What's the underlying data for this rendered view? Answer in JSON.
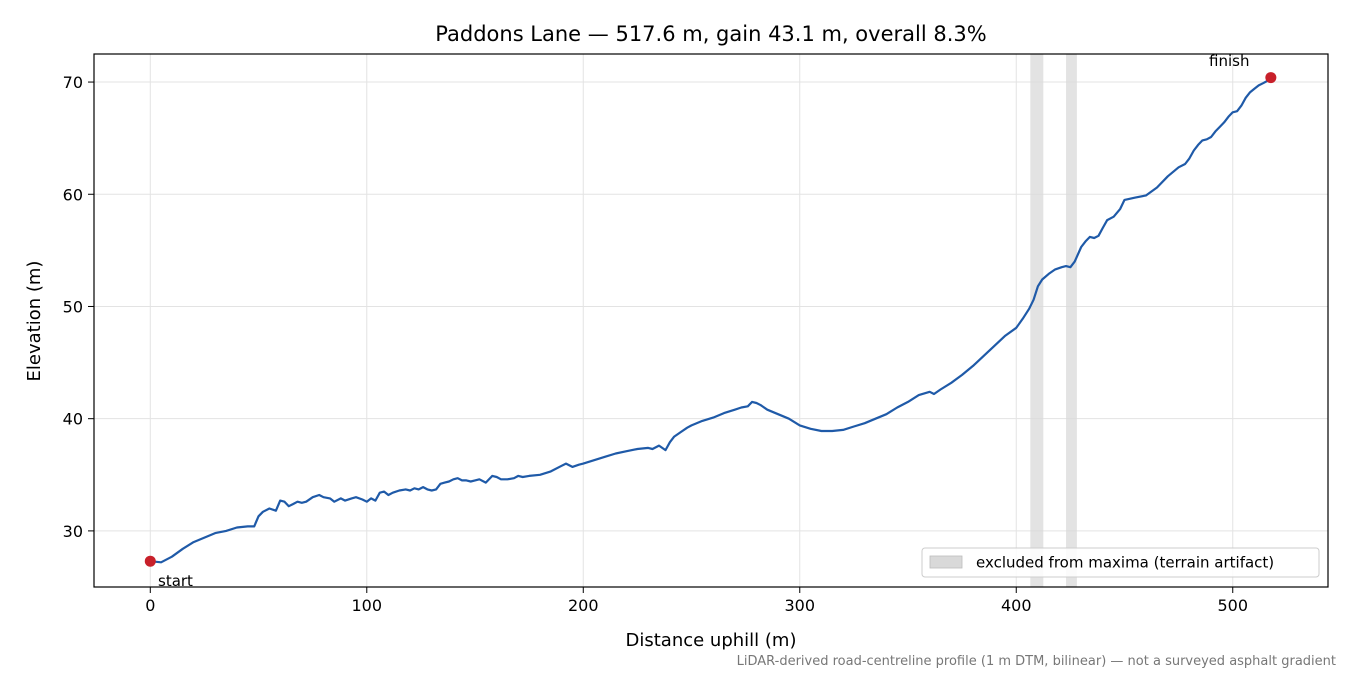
{
  "chart_data": {
    "type": "line",
    "title": "Paddons Lane — 517.6 m, gain 43.1 m, overall 8.3%",
    "xlabel": "Distance uphill (m)",
    "ylabel": "Elevation (m)",
    "xlim": [
      -26,
      544
    ],
    "ylim": [
      25,
      72.5
    ],
    "xticks": [
      "0",
      "100",
      "200",
      "300",
      "400",
      "500"
    ],
    "yticks": [
      "30",
      "40",
      "50",
      "60",
      "70"
    ],
    "grid": true,
    "series": [
      {
        "color": "#1f5aa8",
        "x": [
          0,
          5,
          10,
          15,
          20,
          25,
          30,
          35,
          40,
          45,
          48,
          50,
          52,
          55,
          58,
          60,
          62,
          64,
          66,
          68,
          70,
          72,
          75,
          78,
          80,
          83,
          85,
          88,
          90,
          93,
          95,
          98,
          100,
          102,
          104,
          106,
          108,
          110,
          112,
          115,
          118,
          120,
          122,
          124,
          126,
          128,
          130,
          132,
          134,
          136,
          138,
          140,
          142,
          144,
          146,
          148,
          150,
          152,
          155,
          158,
          160,
          162,
          165,
          168,
          170,
          172,
          175,
          180,
          185,
          190,
          192,
          195,
          198,
          200,
          205,
          210,
          215,
          220,
          225,
          230,
          232,
          235,
          238,
          240,
          242,
          245,
          248,
          250,
          255,
          260,
          265,
          270,
          273,
          276,
          278,
          280,
          282,
          285,
          290,
          295,
          300,
          305,
          310,
          315,
          320,
          325,
          330,
          335,
          340,
          345,
          350,
          355,
          360,
          362,
          365,
          370,
          375,
          380,
          385,
          390,
          395,
          400,
          403,
          406,
          408,
          410,
          412,
          415,
          418,
          421,
          423,
          425,
          427,
          430,
          432,
          434,
          436,
          438,
          440,
          442,
          445,
          448,
          450,
          455,
          460,
          465,
          470,
          475,
          478,
          480,
          482,
          484,
          486,
          488,
          490,
          492,
          494,
          496,
          498,
          500,
          502,
          504,
          506,
          508,
          510,
          512,
          514,
          516,
          517.6
        ],
        "y": [
          27.3,
          27.2,
          27.7,
          28.4,
          29.0,
          29.4,
          29.8,
          30.0,
          30.3,
          30.4,
          30.4,
          31.3,
          31.7,
          32.0,
          31.8,
          32.7,
          32.6,
          32.2,
          32.4,
          32.6,
          32.5,
          32.6,
          33.0,
          33.2,
          33.0,
          32.9,
          32.6,
          32.9,
          32.7,
          32.9,
          33.0,
          32.8,
          32.6,
          32.9,
          32.7,
          33.4,
          33.5,
          33.2,
          33.4,
          33.6,
          33.7,
          33.6,
          33.8,
          33.7,
          33.9,
          33.7,
          33.6,
          33.7,
          34.2,
          34.3,
          34.4,
          34.6,
          34.7,
          34.5,
          34.5,
          34.4,
          34.5,
          34.6,
          34.3,
          34.9,
          34.8,
          34.6,
          34.6,
          34.7,
          34.9,
          34.8,
          34.9,
          35.0,
          35.3,
          35.8,
          36.0,
          35.7,
          35.9,
          36.0,
          36.3,
          36.6,
          36.9,
          37.1,
          37.3,
          37.4,
          37.3,
          37.6,
          37.2,
          37.9,
          38.4,
          38.8,
          39.2,
          39.4,
          39.8,
          40.1,
          40.5,
          40.8,
          41.0,
          41.1,
          41.5,
          41.4,
          41.2,
          40.8,
          40.4,
          40.0,
          39.4,
          39.1,
          38.9,
          38.9,
          39.0,
          39.3,
          39.6,
          40.0,
          40.4,
          41.0,
          41.5,
          42.1,
          42.4,
          42.2,
          42.6,
          43.2,
          43.9,
          44.7,
          45.6,
          46.5,
          47.4,
          48.1,
          48.9,
          49.8,
          50.6,
          51.8,
          52.4,
          52.9,
          53.3,
          53.5,
          53.6,
          53.5,
          54.0,
          55.3,
          55.8,
          56.2,
          56.1,
          56.3,
          57.0,
          57.7,
          58.0,
          58.7,
          59.5,
          59.7,
          59.9,
          60.6,
          61.6,
          62.4,
          62.7,
          63.2,
          63.9,
          64.4,
          64.8,
          64.9,
          65.1,
          65.6,
          66.0,
          66.4,
          66.9,
          67.3,
          67.4,
          67.9,
          68.6,
          69.1,
          69.4,
          69.7,
          69.9,
          70.1,
          70.4
        ]
      }
    ],
    "markers": [
      {
        "x": 0,
        "y": 27.3,
        "color": "#c8202a",
        "label": "start"
      },
      {
        "x": 517.6,
        "y": 70.4,
        "color": "#c8202a",
        "label": "finish"
      }
    ],
    "excluded_bands": [
      {
        "x0": 406.5,
        "x1": 412.5
      },
      {
        "x0": 423.0,
        "x1": 428.0
      }
    ],
    "band_color": "#d9d9d9",
    "legend": {
      "position": "lower-right",
      "entries": [
        {
          "label": "excluded from maxima (terrain artifact)",
          "color": "#d9d9d9"
        }
      ]
    },
    "footnote": "LiDAR-derived road-centreline profile (1 m DTM, bilinear) — not a surveyed asphalt gradient"
  }
}
